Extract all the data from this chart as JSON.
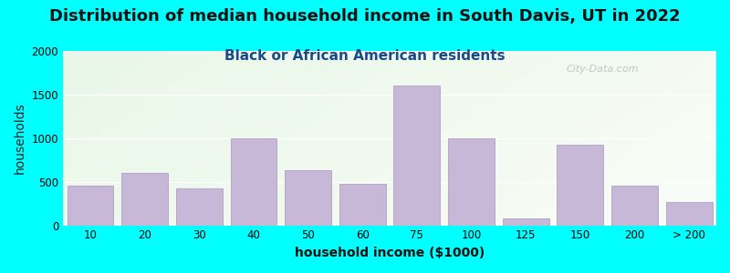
{
  "title": "Distribution of median household income in South Davis, UT in 2022",
  "subtitle": "Black or African American residents",
  "xlabel": "household income ($1000)",
  "ylabel": "households",
  "bar_color": "#c8b8d8",
  "bar_edgecolor": "#b0a0c8",
  "background_color": "#00ffff",
  "ylim": [
    0,
    2000
  ],
  "yticks": [
    0,
    500,
    1000,
    1500,
    2000
  ],
  "categories": [
    "10",
    "20",
    "30",
    "40",
    "50",
    "60",
    "75",
    "100",
    "125",
    "150",
    "200",
    "> 200"
  ],
  "values": [
    450,
    600,
    420,
    1000,
    630,
    480,
    1600,
    1000,
    75,
    920,
    460,
    270
  ],
  "watermark": "City-Data.com",
  "title_fontsize": 13,
  "subtitle_fontsize": 11,
  "axis_label_fontsize": 10,
  "tick_fontsize": 8.5
}
